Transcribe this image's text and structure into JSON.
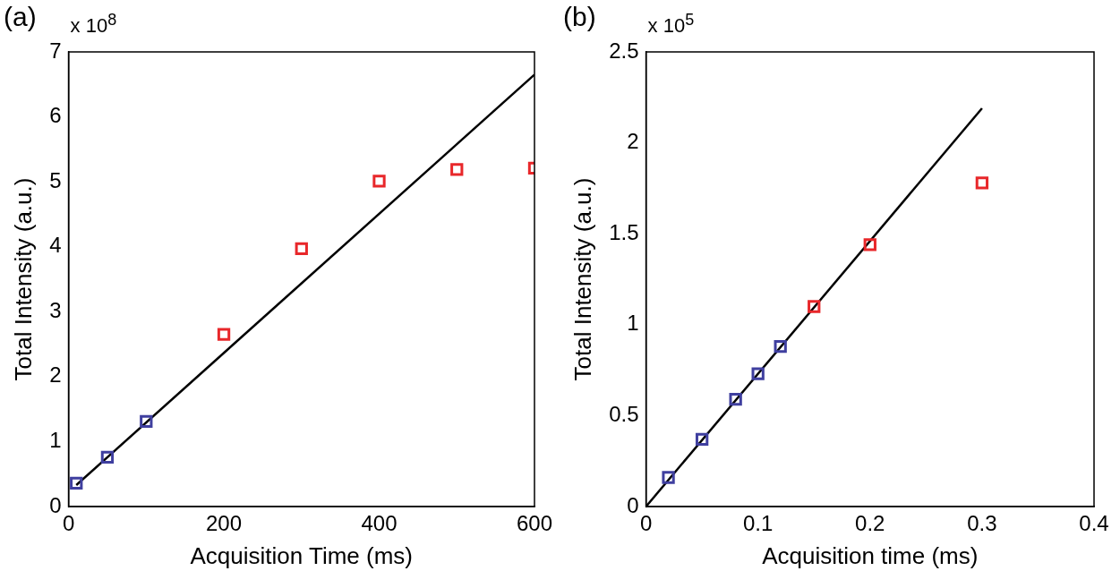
{
  "chart_data": [
    {
      "type": "scatter",
      "title": "(a)",
      "xlabel": "Acquisition Time (ms)",
      "ylabel": "Total Intensity (a.u.)",
      "annotations": [
        "x 10$^{8}$"
      ],
      "marker": "square",
      "xlim": [
        0,
        600
      ],
      "xticks": [
        0,
        200,
        400,
        600
      ],
      "ylim": [
        0,
        7
      ],
      "yticks": [
        0,
        1,
        2,
        3,
        4,
        5,
        6,
        7
      ],
      "series": [
        {
          "type": "scatter",
          "color": "#3f3f9f",
          "x": [
            10,
            50,
            100
          ],
          "values": [
            0.36,
            0.76,
            1.31
          ]
        },
        {
          "type": "scatter",
          "color": "#e8272a",
          "x": [
            200,
            300,
            400,
            500,
            600
          ],
          "values": [
            2.65,
            3.97,
            5.01,
            5.19,
            5.21
          ]
        },
        {
          "type": "line",
          "color": "#000000",
          "marker": "none",
          "x": [
            10,
            600
          ],
          "values": [
            0.33,
            6.65
          ]
        }
      ]
    },
    {
      "type": "scatter",
      "title": "(b)",
      "xlabel": "Acquisition time (ms)",
      "ylabel": "Total Intensity (a.u.)",
      "annotations": [
        "x 10$^{5}$"
      ],
      "marker": "square",
      "xlim": [
        0,
        0.4
      ],
      "xticks": [
        0,
        0.1,
        0.2,
        0.3,
        0.4
      ],
      "ylim": [
        0,
        2.5
      ],
      "yticks": [
        0,
        0.5,
        1,
        1.5,
        2,
        2.5
      ],
      "series": [
        {
          "type": "scatter",
          "color": "#3f3f9f",
          "x": [
            0.02,
            0.05,
            0.08,
            0.1,
            0.12
          ],
          "values": [
            0.16,
            0.37,
            0.59,
            0.73,
            0.88
          ]
        },
        {
          "type": "scatter",
          "color": "#e8272a",
          "x": [
            0.15,
            0.2,
            0.3
          ],
          "values": [
            1.1,
            1.44,
            1.78
          ]
        },
        {
          "type": "line",
          "color": "#000000",
          "marker": "none",
          "x": [
            0,
            0.3
          ],
          "values": [
            0,
            2.19
          ]
        }
      ]
    }
  ]
}
